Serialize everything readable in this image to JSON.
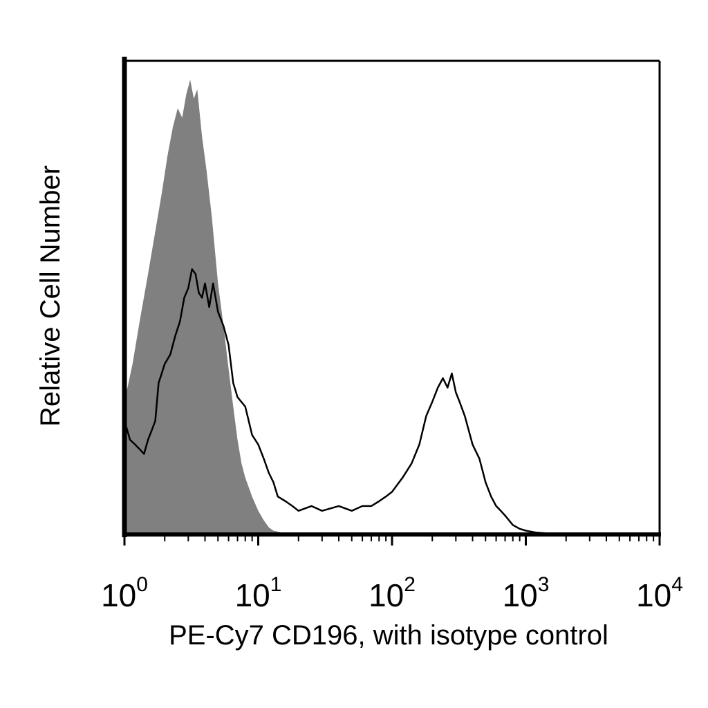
{
  "chart_data": {
    "type": "area",
    "x_scale": "log",
    "xlim": [
      1,
      10000
    ],
    "xlabel": "PE-Cy7 CD196, with isotype control",
    "ylabel": "Relative Cell Number",
    "title": "",
    "grid": false,
    "x_ticks": [
      {
        "base": "10",
        "exp": "0",
        "value": 1
      },
      {
        "base": "10",
        "exp": "1",
        "value": 10
      },
      {
        "base": "10",
        "exp": "2",
        "value": 100
      },
      {
        "base": "10",
        "exp": "3",
        "value": 1000
      },
      {
        "base": "10",
        "exp": "4",
        "value": 10000
      }
    ],
    "series": [
      {
        "style": "filled-gray",
        "color": "#808080",
        "x": [
          1,
          1.15,
          1.3,
          1.5,
          1.7,
          1.9,
          2.1,
          2.3,
          2.5,
          2.7,
          2.9,
          3.1,
          3.3,
          3.5,
          3.8,
          4.1,
          4.5,
          5,
          5.5,
          6,
          6.5,
          7,
          7.5,
          8,
          9,
          10,
          11,
          12,
          13,
          15,
          20,
          30,
          50,
          100,
          1000,
          10000
        ],
        "y": [
          0.28,
          0.36,
          0.45,
          0.55,
          0.64,
          0.72,
          0.8,
          0.86,
          0.9,
          0.88,
          0.93,
          0.96,
          0.92,
          0.94,
          0.84,
          0.77,
          0.67,
          0.53,
          0.44,
          0.35,
          0.27,
          0.2,
          0.15,
          0.12,
          0.08,
          0.05,
          0.03,
          0.015,
          0.008,
          0.004,
          0.002,
          0.001,
          0,
          0,
          0,
          0
        ]
      },
      {
        "style": "outline-black",
        "color": "#000000",
        "x": [
          1,
          1.05,
          1.1,
          1.2,
          1.3,
          1.4,
          1.5,
          1.6,
          1.7,
          1.8,
          1.9,
          2.0,
          2.2,
          2.4,
          2.6,
          2.8,
          3.0,
          3.2,
          3.4,
          3.6,
          3.8,
          4.0,
          4.3,
          4.6,
          5,
          5.5,
          6,
          6.5,
          7,
          8,
          9,
          10,
          11,
          12,
          13,
          14,
          16,
          18,
          20,
          25,
          30,
          40,
          50,
          60,
          70,
          80,
          90,
          100,
          120,
          140,
          160,
          180,
          200,
          220,
          240,
          260,
          280,
          300,
          320,
          350,
          400,
          450,
          500,
          550,
          600,
          650,
          700,
          800,
          900,
          1000,
          1200,
          1500,
          2000,
          5000,
          10000
        ],
        "y": [
          0.24,
          0.22,
          0.2,
          0.19,
          0.18,
          0.17,
          0.2,
          0.22,
          0.24,
          0.32,
          0.34,
          0.36,
          0.38,
          0.42,
          0.45,
          0.5,
          0.52,
          0.56,
          0.55,
          0.51,
          0.5,
          0.53,
          0.48,
          0.53,
          0.47,
          0.44,
          0.4,
          0.32,
          0.29,
          0.27,
          0.21,
          0.19,
          0.16,
          0.13,
          0.11,
          0.08,
          0.07,
          0.06,
          0.05,
          0.06,
          0.05,
          0.06,
          0.05,
          0.06,
          0.06,
          0.07,
          0.08,
          0.09,
          0.12,
          0.15,
          0.19,
          0.25,
          0.28,
          0.31,
          0.33,
          0.31,
          0.34,
          0.3,
          0.28,
          0.25,
          0.19,
          0.16,
          0.11,
          0.08,
          0.06,
          0.05,
          0.04,
          0.02,
          0.012,
          0.008,
          0.004,
          0.002,
          0.001,
          0,
          0
        ]
      }
    ]
  }
}
